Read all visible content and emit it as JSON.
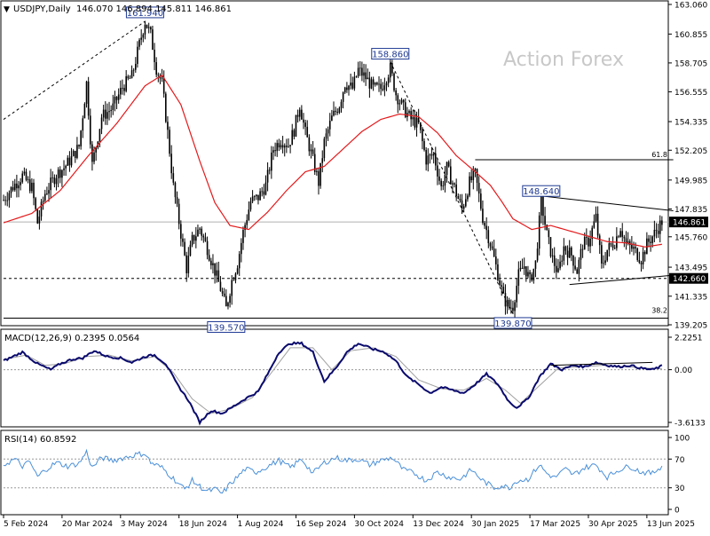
{
  "header": {
    "symbol_line": "USDJPY,Daily",
    "ohlc": "146.070 146.894 145.811 146.861",
    "collapse_glyph": "▼"
  },
  "watermark": "Action Forex",
  "colors": {
    "candle": "#000000",
    "ma": "#e31a1c",
    "macd_line": "#0a0a6e",
    "signal_line": "#a0a0a0",
    "rsi": "#4a90d9",
    "label_box": "#1f3a93",
    "price_tag_bg": "#000000"
  },
  "x_axis_labels": [
    "5 Feb 2024",
    "20 Mar 2024",
    "3 May 2024",
    "18 Jun 2024",
    "1 Aug 2024",
    "16 Sep 2024",
    "30 Oct 2024",
    "13 Dec 2024",
    "30 Jan 2025",
    "17 Mar 2025",
    "30 Apr 2025",
    "13 Jun 2025"
  ],
  "chart_data": [
    {
      "type": "candlestick",
      "title": "USDJPY,Daily",
      "y_ticks": [
        "163.060",
        "160.855",
        "158.705",
        "156.555",
        "154.335",
        "152.205",
        "149.985",
        "147.835",
        "145.760",
        "143.495",
        "141.335",
        "139.205"
      ],
      "ylim": [
        139.205,
        163.06
      ],
      "last_price": "146.861",
      "support_price": "142.660",
      "key_points": [
        {
          "label": "161.940",
          "value": 161.94,
          "date_index": 75
        },
        {
          "label": "139.570",
          "value": 139.57,
          "date_index": 118
        },
        {
          "label": "158.860",
          "value": 158.86,
          "date_index": 205
        },
        {
          "label": "148.640",
          "value": 148.64,
          "date_index": 285
        },
        {
          "label": "139.870",
          "value": 139.87,
          "date_index": 270
        }
      ],
      "fib_levels": [
        {
          "label": "61.8",
          "value": 151.5
        },
        {
          "label": "38.2",
          "value": 139.9
        }
      ],
      "close_path": [
        [
          0,
          148.5
        ],
        [
          5,
          149.5
        ],
        [
          10,
          150.3
        ],
        [
          15,
          149.4
        ],
        [
          18,
          146.8
        ],
        [
          22,
          149.0
        ],
        [
          28,
          150.4
        ],
        [
          32,
          150.9
        ],
        [
          36,
          151.6
        ],
        [
          40,
          152.5
        ],
        [
          44,
          157.2
        ],
        [
          47,
          151.1
        ],
        [
          52,
          154.7
        ],
        [
          58,
          155.4
        ],
        [
          63,
          156.9
        ],
        [
          68,
          157.7
        ],
        [
          72,
          160.1
        ],
        [
          75,
          161.8
        ],
        [
          78,
          160.8
        ],
        [
          81,
          158.3
        ],
        [
          84,
          157.2
        ],
        [
          87,
          153.5
        ],
        [
          90,
          149.5
        ],
        [
          94,
          146.0
        ],
        [
          97,
          143.4
        ],
        [
          100,
          145.5
        ],
        [
          104,
          146.4
        ],
        [
          108,
          144.9
        ],
        [
          112,
          143.2
        ],
        [
          115,
          141.9
        ],
        [
          118,
          140.4
        ],
        [
          121,
          142.5
        ],
        [
          124,
          143.8
        ],
        [
          127,
          146.1
        ],
        [
          131,
          148.4
        ],
        [
          135,
          148.7
        ],
        [
          139,
          149.6
        ],
        [
          143,
          152.3
        ],
        [
          147,
          153.0
        ],
        [
          151,
          152.6
        ],
        [
          154,
          153.7
        ],
        [
          157,
          155.6
        ],
        [
          160,
          153.5
        ],
        [
          163,
          152.0
        ],
        [
          167,
          149.8
        ],
        [
          170,
          152.8
        ],
        [
          174,
          154.6
        ],
        [
          178,
          155.6
        ],
        [
          181,
          157.2
        ],
        [
          185,
          156.8
        ],
        [
          188,
          158.2
        ],
        [
          192,
          157.6
        ],
        [
          196,
          156.8
        ],
        [
          200,
          156.8
        ],
        [
          205,
          158.3
        ],
        [
          208,
          156.4
        ],
        [
          212,
          155.3
        ],
        [
          216,
          154.5
        ],
        [
          220,
          154.1
        ],
        [
          224,
          151.5
        ],
        [
          228,
          151.9
        ],
        [
          232,
          149.4
        ],
        [
          235,
          150.9
        ],
        [
          239,
          149.4
        ],
        [
          243,
          147.8
        ],
        [
          247,
          149.8
        ],
        [
          250,
          150.4
        ],
        [
          254,
          147.2
        ],
        [
          258,
          145.3
        ],
        [
          262,
          143.0
        ],
        [
          265,
          141.2
        ],
        [
          268,
          140.5
        ],
        [
          270,
          140.6
        ],
        [
          273,
          142.9
        ],
        [
          276,
          143.6
        ],
        [
          279,
          142.5
        ],
        [
          282,
          143.8
        ],
        [
          285,
          148.4
        ],
        [
          288,
          145.9
        ],
        [
          291,
          144.1
        ],
        [
          294,
          143.0
        ],
        [
          297,
          145.0
        ],
        [
          301,
          144.4
        ],
        [
          304,
          143.2
        ],
        [
          307,
          145.2
        ],
        [
          310,
          145.4
        ],
        [
          314,
          147.2
        ],
        [
          317,
          143.5
        ],
        [
          320,
          144.8
        ],
        [
          324,
          145.4
        ],
        [
          327,
          146.5
        ],
        [
          330,
          145.2
        ],
        [
          334,
          144.8
        ],
        [
          338,
          144.1
        ],
        [
          341,
          145.2
        ],
        [
          345,
          146.0
        ],
        [
          349,
          146.9
        ]
      ],
      "ma_path": [
        [
          0,
          146.8
        ],
        [
          15,
          147.5
        ],
        [
          30,
          149.2
        ],
        [
          45,
          151.8
        ],
        [
          60,
          154.2
        ],
        [
          75,
          157.0
        ],
        [
          84,
          157.8
        ],
        [
          94,
          155.6
        ],
        [
          104,
          151.4
        ],
        [
          112,
          148.3
        ],
        [
          120,
          146.6
        ],
        [
          130,
          146.3
        ],
        [
          140,
          147.6
        ],
        [
          150,
          149.2
        ],
        [
          160,
          150.6
        ],
        [
          170,
          151.0
        ],
        [
          180,
          152.3
        ],
        [
          190,
          153.6
        ],
        [
          200,
          154.5
        ],
        [
          210,
          154.9
        ],
        [
          220,
          154.7
        ],
        [
          230,
          153.5
        ],
        [
          240,
          151.8
        ],
        [
          250,
          150.6
        ],
        [
          258,
          149.6
        ],
        [
          264,
          148.4
        ],
        [
          270,
          147.1
        ],
        [
          280,
          146.3
        ],
        [
          290,
          146.6
        ],
        [
          300,
          146.2
        ],
        [
          310,
          145.8
        ],
        [
          320,
          145.4
        ],
        [
          330,
          145.3
        ],
        [
          340,
          145.0
        ],
        [
          349,
          145.2
        ]
      ],
      "trendlines": [
        {
          "kind": "dashed",
          "from": [
            0,
            154.5
          ],
          "to": [
            75,
            161.8
          ]
        },
        {
          "kind": "dashed",
          "from": [
            205,
            158.8
          ],
          "to": [
            270,
            140.0
          ]
        },
        {
          "kind": "solid",
          "from": [
            250,
            151.5
          ],
          "to": [
            355,
            151.5
          ]
        },
        {
          "kind": "solid",
          "from": [
            285,
            148.8
          ],
          "to": [
            355,
            147.7
          ]
        },
        {
          "kind": "solid",
          "from": [
            300,
            142.2
          ],
          "to": [
            355,
            142.9
          ]
        }
      ]
    },
    {
      "type": "line",
      "title": "MACD(12,26,9) 0.2395 0.0564",
      "y_ticks": [
        "2.2251",
        "0.00",
        "-3.6133"
      ],
      "ylim": [
        -3.6133,
        2.2251
      ],
      "macd_line": [
        [
          0,
          0.6
        ],
        [
          10,
          1.2
        ],
        [
          18,
          0.4
        ],
        [
          25,
          0.0
        ],
        [
          30,
          0.4
        ],
        [
          36,
          0.7
        ],
        [
          42,
          0.8
        ],
        [
          48,
          1.3
        ],
        [
          55,
          0.9
        ],
        [
          62,
          0.8
        ],
        [
          68,
          0.5
        ],
        [
          75,
          0.9
        ],
        [
          80,
          1.0
        ],
        [
          86,
          0.4
        ],
        [
          92,
          -1.0
        ],
        [
          98,
          -2.1
        ],
        [
          104,
          -3.6
        ],
        [
          110,
          -2.8
        ],
        [
          116,
          -3.0
        ],
        [
          122,
          -2.5
        ],
        [
          128,
          -2.0
        ],
        [
          135,
          -1.5
        ],
        [
          140,
          -0.3
        ],
        [
          146,
          1.2
        ],
        [
          152,
          1.8
        ],
        [
          158,
          1.8
        ],
        [
          164,
          1.2
        ],
        [
          170,
          -0.8
        ],
        [
          176,
          0.1
        ],
        [
          182,
          1.2
        ],
        [
          188,
          1.8
        ],
        [
          192,
          1.6
        ],
        [
          196,
          1.4
        ],
        [
          202,
          1.2
        ],
        [
          208,
          0.6
        ],
        [
          214,
          -0.5
        ],
        [
          220,
          -1.0
        ],
        [
          226,
          -1.6
        ],
        [
          232,
          -1.2
        ],
        [
          238,
          -1.4
        ],
        [
          244,
          -1.6
        ],
        [
          250,
          -1.0
        ],
        [
          256,
          -0.3
        ],
        [
          262,
          -1.0
        ],
        [
          268,
          -2.2
        ],
        [
          272,
          -2.6
        ],
        [
          278,
          -2.0
        ],
        [
          284,
          -0.5
        ],
        [
          290,
          0.4
        ],
        [
          296,
          0.0
        ],
        [
          302,
          0.3
        ],
        [
          308,
          0.2
        ],
        [
          314,
          0.5
        ],
        [
          320,
          0.3
        ],
        [
          326,
          0.2
        ],
        [
          332,
          0.3
        ],
        [
          338,
          0.1
        ],
        [
          344,
          0.0
        ],
        [
          349,
          0.25
        ]
      ],
      "signal_line": [
        [
          0,
          0.7
        ],
        [
          12,
          1.0
        ],
        [
          22,
          0.3
        ],
        [
          32,
          0.4
        ],
        [
          44,
          0.9
        ],
        [
          56,
          1.0
        ],
        [
          68,
          0.6
        ],
        [
          80,
          0.9
        ],
        [
          90,
          -0.2
        ],
        [
          100,
          -2.0
        ],
        [
          110,
          -3.0
        ],
        [
          120,
          -2.7
        ],
        [
          132,
          -1.9
        ],
        [
          142,
          -0.2
        ],
        [
          152,
          1.5
        ],
        [
          164,
          1.5
        ],
        [
          174,
          0.0
        ],
        [
          184,
          1.3
        ],
        [
          196,
          1.5
        ],
        [
          208,
          0.9
        ],
        [
          220,
          -0.7
        ],
        [
          232,
          -1.3
        ],
        [
          244,
          -1.4
        ],
        [
          256,
          -0.6
        ],
        [
          266,
          -1.4
        ],
        [
          274,
          -2.3
        ],
        [
          284,
          -1.1
        ],
        [
          294,
          0.1
        ],
        [
          306,
          0.2
        ],
        [
          318,
          0.3
        ],
        [
          330,
          0.2
        ],
        [
          342,
          0.1
        ],
        [
          349,
          0.06
        ]
      ],
      "trendlines": [
        {
          "kind": "solid",
          "from": [
            290,
            0.3
          ],
          "to": [
            344,
            0.5
          ]
        }
      ]
    },
    {
      "type": "line",
      "title": "RSI(14) 60.8592",
      "y_ticks": [
        "100",
        "70",
        "30",
        "0"
      ],
      "ylim": [
        0,
        100
      ],
      "levels": [
        70,
        30
      ],
      "values": [
        [
          0,
          62
        ],
        [
          6,
          70
        ],
        [
          10,
          60
        ],
        [
          14,
          66
        ],
        [
          18,
          45
        ],
        [
          22,
          55
        ],
        [
          28,
          65
        ],
        [
          34,
          60
        ],
        [
          40,
          64
        ],
        [
          44,
          80
        ],
        [
          47,
          58
        ],
        [
          52,
          72
        ],
        [
          58,
          68
        ],
        [
          64,
          72
        ],
        [
          70,
          76
        ],
        [
          75,
          78
        ],
        [
          78,
          65
        ],
        [
          84,
          58
        ],
        [
          88,
          48
        ],
        [
          92,
          38
        ],
        [
          96,
          28
        ],
        [
          100,
          40
        ],
        [
          104,
          32
        ],
        [
          108,
          25
        ],
        [
          112,
          28
        ],
        [
          116,
          22
        ],
        [
          120,
          35
        ],
        [
          124,
          45
        ],
        [
          128,
          56
        ],
        [
          134,
          52
        ],
        [
          140,
          60
        ],
        [
          146,
          68
        ],
        [
          152,
          58
        ],
        [
          158,
          70
        ],
        [
          164,
          50
        ],
        [
          170,
          65
        ],
        [
          176,
          72
        ],
        [
          182,
          68
        ],
        [
          188,
          70
        ],
        [
          194,
          62
        ],
        [
          200,
          68
        ],
        [
          206,
          72
        ],
        [
          212,
          55
        ],
        [
          218,
          50
        ],
        [
          224,
          40
        ],
        [
          230,
          52
        ],
        [
          236,
          45
        ],
        [
          242,
          42
        ],
        [
          248,
          55
        ],
        [
          254,
          40
        ],
        [
          260,
          30
        ],
        [
          264,
          33
        ],
        [
          268,
          30
        ],
        [
          272,
          40
        ],
        [
          278,
          42
        ],
        [
          284,
          62
        ],
        [
          288,
          50
        ],
        [
          292,
          44
        ],
        [
          298,
          56
        ],
        [
          302,
          48
        ],
        [
          308,
          58
        ],
        [
          314,
          62
        ],
        [
          320,
          45
        ],
        [
          326,
          55
        ],
        [
          332,
          60
        ],
        [
          338,
          52
        ],
        [
          344,
          50
        ],
        [
          349,
          60.9
        ]
      ]
    }
  ]
}
